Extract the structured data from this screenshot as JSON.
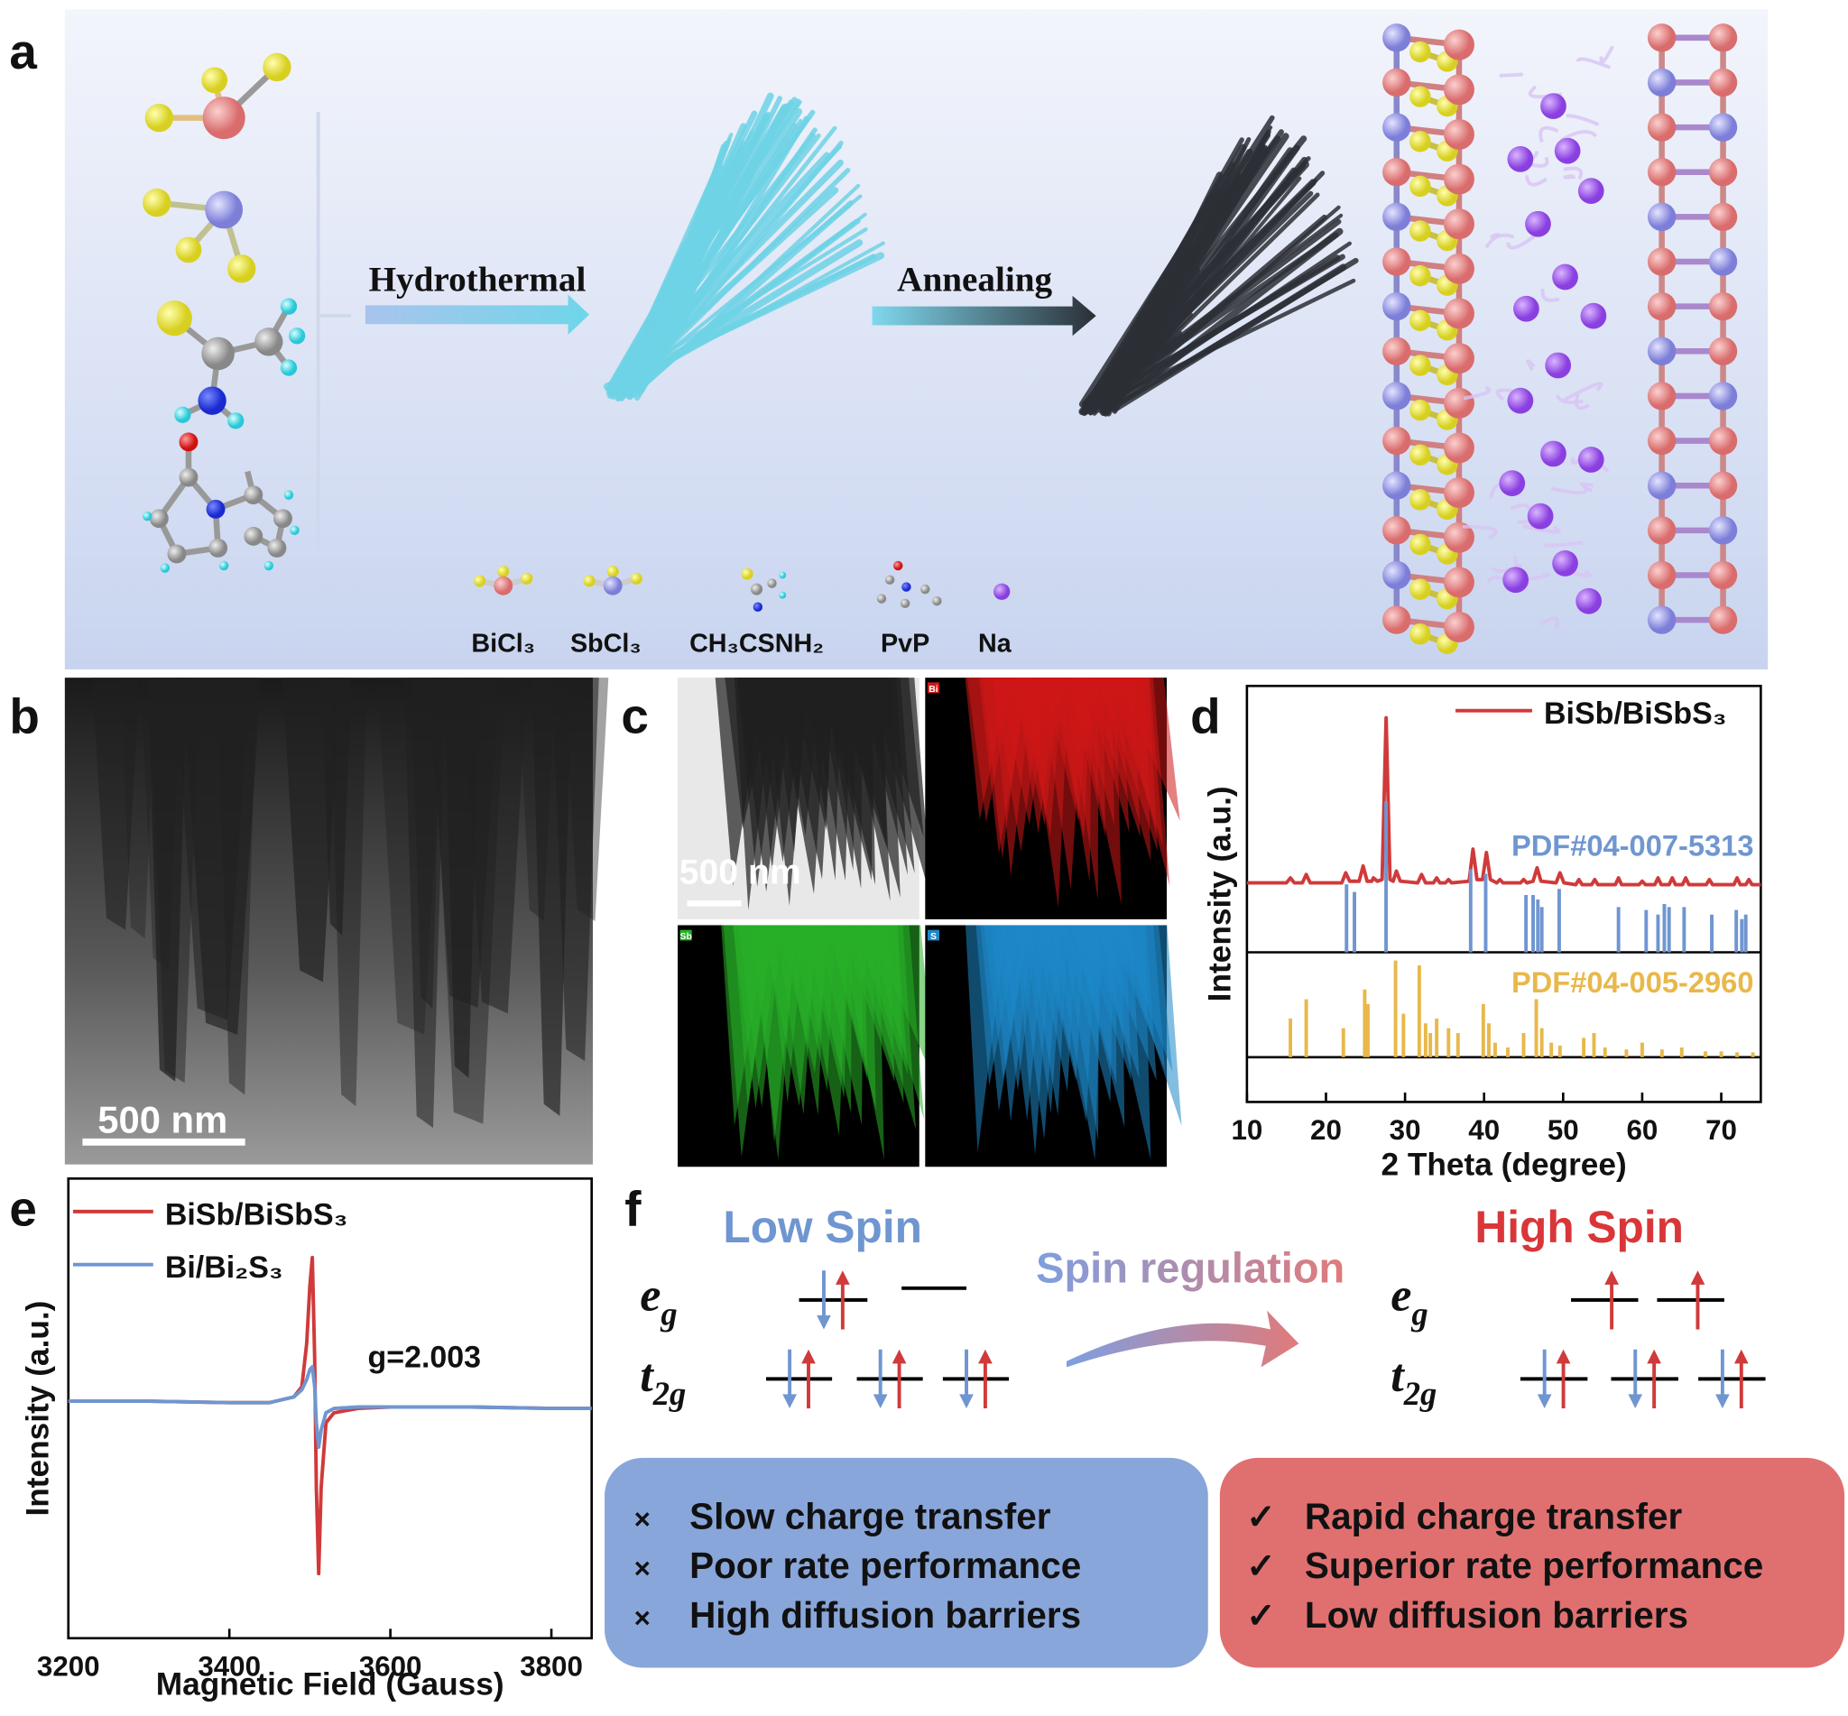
{
  "panel_labels": [
    "a",
    "b",
    "c",
    "d",
    "e",
    "f"
  ],
  "scheme": {
    "steps": [
      "Hydrothermal",
      "Annealing"
    ],
    "legend": [
      "BiCl₃",
      "SbCl₃",
      "CH₃CSNH₂",
      "PvP",
      "Na"
    ]
  },
  "tem": {
    "scale_bar": "500 nm"
  },
  "mapping": {
    "scale_bar": "500 nm",
    "element_tags": [
      "Bi",
      "Sb",
      "S"
    ]
  },
  "chart_data": [
    {
      "type": "line",
      "xlabel": "2 Theta (degree)",
      "ylabel": "Intensity (a.u.)",
      "xlim": [
        10,
        75
      ],
      "xticks": [
        10,
        20,
        30,
        40,
        50,
        60,
        70
      ],
      "ylim": [
        0,
        100
      ],
      "series": [
        {
          "name": "BiSb/BiSbS₃",
          "color": "#d03a3a",
          "style": "line",
          "x": [
            10,
            15,
            15.5,
            16,
            17,
            17.5,
            18,
            22,
            22.5,
            23,
            24.2,
            24.7,
            25.2,
            25.8,
            26,
            26.5,
            27.1,
            27.6,
            28.1,
            28.5,
            28.9,
            29.4,
            31.6,
            32.1,
            32.6,
            33.6,
            34,
            34.4,
            35.1,
            35.5,
            35.9,
            38.1,
            38.6,
            39.1,
            39.8,
            40.3,
            40.8,
            41.6,
            42,
            42.4,
            44.6,
            45,
            45.4,
            46.2,
            46.7,
            47.2,
            49.1,
            49.6,
            50.1,
            51.6,
            52,
            52.4,
            53.6,
            54,
            54.4,
            56.6,
            57,
            57.4,
            59.6,
            60,
            60.4,
            61.6,
            62,
            62.4,
            63.4,
            63.8,
            64.2,
            65.1,
            65.5,
            65.9,
            68.1,
            68.5,
            68.9,
            71.6,
            72,
            72.4,
            73.1,
            73.5,
            73.9,
            75
          ],
          "values": [
            2,
            2,
            5,
            2,
            2,
            7,
            2,
            2,
            8,
            3,
            3,
            12,
            3,
            3,
            5,
            3,
            4,
            100,
            4,
            3,
            9,
            3,
            2,
            7,
            2,
            2,
            5,
            2,
            2,
            4,
            2,
            3,
            22,
            4,
            4,
            20,
            4,
            2,
            4,
            2,
            2,
            4,
            2,
            3,
            11,
            3,
            2,
            8,
            2,
            1,
            4,
            1,
            1,
            4,
            1,
            1,
            5,
            1,
            1,
            3,
            1,
            1,
            5,
            1,
            1,
            5,
            1,
            1,
            5,
            1,
            1,
            4,
            1,
            1,
            5,
            1,
            1,
            4,
            1,
            1
          ]
        },
        {
          "name": "PDF#04-007-5313",
          "color": "#6f96d0",
          "style": "sticks",
          "x": [
            22.6,
            23.6,
            27.6,
            38.3,
            40.2,
            45.3,
            46.2,
            46.8,
            47.3,
            49.5,
            57,
            60.5,
            62,
            62.8,
            63.4,
            65.3,
            68.8,
            71.9,
            72.6,
            73.1
          ],
          "values": [
            45,
            40,
            100,
            55,
            52,
            38,
            38,
            35,
            30,
            42,
            30,
            28,
            25,
            32,
            30,
            30,
            25,
            28,
            22,
            25
          ]
        },
        {
          "name": "PDF#04-005-2960",
          "color": "#e8b84a",
          "style": "sticks",
          "x": [
            15.5,
            17.5,
            22.2,
            24.9,
            25.3,
            28.8,
            29.8,
            31.8,
            32.6,
            33.2,
            34,
            35.5,
            36.7,
            39.9,
            40.6,
            41.4,
            43,
            45,
            46.6,
            47.3,
            48.5,
            49.6,
            52.6,
            53.9,
            55.3,
            58,
            60,
            62.5,
            65,
            68,
            70,
            72,
            74
          ],
          "values": [
            40,
            60,
            30,
            70,
            55,
            100,
            45,
            95,
            35,
            25,
            40,
            30,
            25,
            55,
            35,
            15,
            10,
            25,
            60,
            30,
            15,
            12,
            20,
            25,
            10,
            8,
            15,
            8,
            10,
            6,
            6,
            5,
            5
          ]
        }
      ]
    },
    {
      "type": "line",
      "xlabel": "Magnetic Field (Gauss)",
      "ylabel": "Intensity (a.u.)",
      "annotation": "g=2.003",
      "xlim": [
        3200,
        3850
      ],
      "xticks": [
        3200,
        3400,
        3600,
        3800
      ],
      "ylim": [
        -165,
        155
      ],
      "x": [
        3200,
        3300,
        3400,
        3450,
        3480,
        3490,
        3496,
        3500,
        3503,
        3506,
        3508,
        3511,
        3514,
        3520,
        3530,
        3560,
        3600,
        3700,
        3800,
        3850
      ],
      "series": [
        {
          "name": "BiSb/BiSbS₃",
          "color": "#d03a3a",
          "values": [
            0,
            0,
            -1,
            -1,
            3,
            10,
            40,
            80,
            100,
            30,
            -60,
            -120,
            -60,
            -15,
            -8,
            -5,
            -4,
            -4,
            -5,
            -5
          ]
        },
        {
          "name": "Bi/Bi₂S₃",
          "color": "#6f96d0",
          "values": [
            0,
            0,
            -1,
            -1,
            3,
            8,
            15,
            22,
            24,
            10,
            -15,
            -32,
            -20,
            -8,
            -5,
            -4,
            -4,
            -4,
            -5,
            -5
          ]
        }
      ]
    }
  ],
  "spin": {
    "low": "Low Spin",
    "high": "High Spin",
    "process": "Spin regulation",
    "orbitals": [
      {
        "symbol": "e",
        "subscript": "g"
      },
      {
        "symbol": "t",
        "subscript": "2g"
      }
    ],
    "drawbacks": {
      "mark": "×",
      "items": [
        "Slow charge transfer",
        "Poor rate performance",
        "High diffusion barriers"
      ]
    },
    "benefits": {
      "mark": "✓",
      "items": [
        "Rapid charge transfer",
        "Superior rate performance",
        "Low diffusion barriers"
      ]
    }
  }
}
